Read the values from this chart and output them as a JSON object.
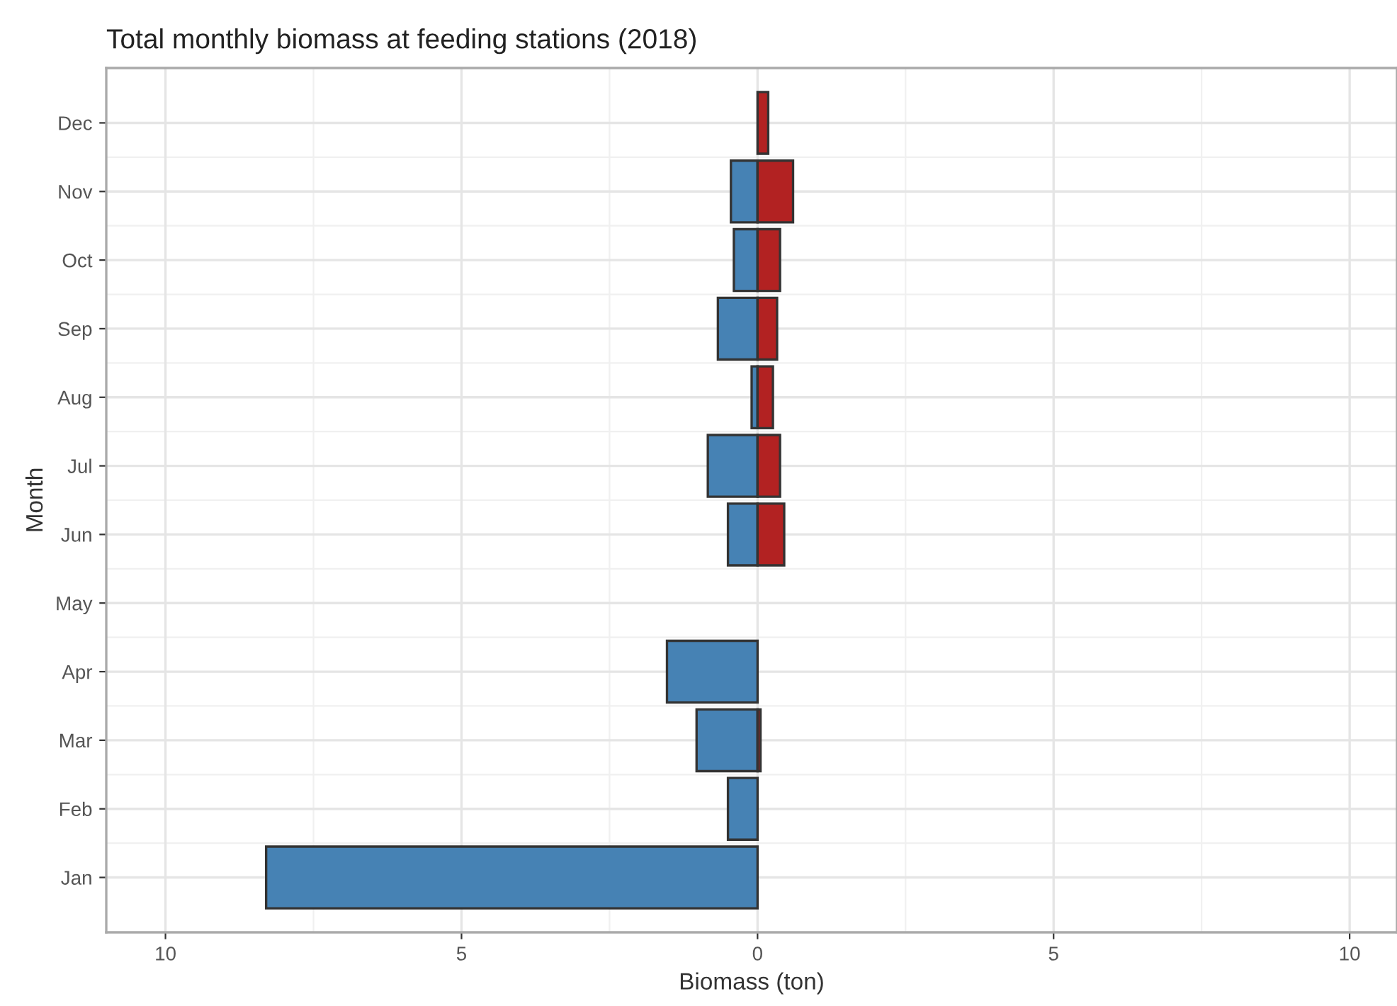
{
  "chart_data": {
    "type": "bar",
    "orientation": "horizontal",
    "stacked": true,
    "title": "Total monthly biomass at feeding stations (2018)",
    "xlabel": "Biomass (ton)",
    "ylabel": "Month",
    "categories": [
      "Dec",
      "Nov",
      "Oct",
      "Sep",
      "Aug",
      "Jul",
      "Jun",
      "May",
      "Apr",
      "Mar",
      "Feb",
      "Jan"
    ],
    "series": [
      {
        "color": "#4682b4",
        "values": [
          null,
          -0.45,
          -0.4,
          -0.67,
          -0.1,
          -0.84,
          -0.5,
          null,
          -1.53,
          -1.03,
          -0.5,
          -8.3
        ]
      },
      {
        "color": "#b22222",
        "values": [
          0.18,
          0.6,
          0.38,
          0.33,
          0.26,
          0.38,
          0.45,
          null,
          null,
          0.05,
          null,
          null
        ]
      }
    ],
    "xlim": [
      -11,
      10.8
    ],
    "xticks": [
      {
        "value": -10,
        "label": "10"
      },
      {
        "value": -5,
        "label": "5"
      },
      0,
      5,
      10
    ],
    "grid": true,
    "legend": false
  }
}
